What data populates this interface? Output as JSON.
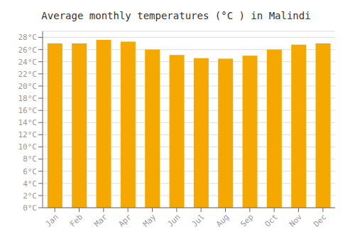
{
  "chart_data": {
    "type": "bar",
    "title": "Average monthly temperatures (°C ) in Malindi",
    "categories": [
      "Jan",
      "Feb",
      "Mar",
      "Apr",
      "May",
      "Jun",
      "Jul",
      "Aug",
      "Sep",
      "Oct",
      "Nov",
      "Dec"
    ],
    "values": [
      27.0,
      27.0,
      27.6,
      27.3,
      26.0,
      25.1,
      24.6,
      24.5,
      25.0,
      26.0,
      26.8,
      27.0
    ],
    "color": "#F5A800",
    "ylim": [
      0,
      29
    ],
    "yticks": [
      {
        "value": 0,
        "label": "0°C"
      },
      {
        "value": 2,
        "label": "2°C"
      },
      {
        "value": 4,
        "label": "4°C"
      },
      {
        "value": 6,
        "label": "6°C"
      },
      {
        "value": 8,
        "label": "8°C"
      },
      {
        "value": 10,
        "label": "10°C"
      },
      {
        "value": 12,
        "label": "12°C"
      },
      {
        "value": 14,
        "label": "14°C"
      },
      {
        "value": 16,
        "label": "16°C"
      },
      {
        "value": 18,
        "label": "18°C"
      },
      {
        "value": 20,
        "label": "20°C"
      },
      {
        "value": 22,
        "label": "22°C"
      },
      {
        "value": 24,
        "label": "24°C"
      },
      {
        "value": 26,
        "label": "26°C"
      },
      {
        "value": 28,
        "label": "28°C"
      }
    ],
    "grid": true
  }
}
